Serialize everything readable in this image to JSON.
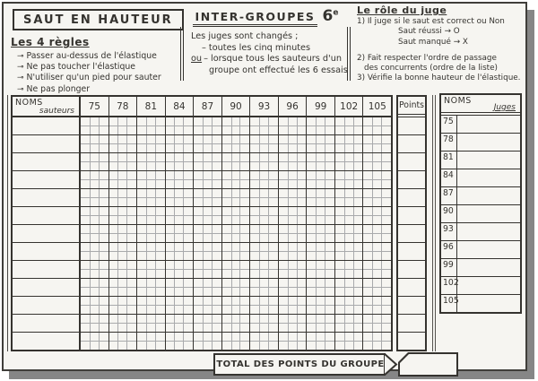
{
  "header": {
    "title": "SAUT EN HAUTEUR"
  },
  "rules_section": {
    "heading": "Les 4 règles",
    "bullet": "⊸",
    "items": [
      "Passer au-dessus de l'élastique",
      "Ne pas toucher l'élastique",
      "N'utiliser qu'un pied pour sauter",
      "Ne pas plonger"
    ]
  },
  "groups_section": {
    "title": "INTER-GROUPES",
    "grade": "6",
    "grade_sup": "e",
    "intro": "Les juges sont changés ;",
    "option1": "– toutes les cinq minutes",
    "or_label": "ou",
    "option2a": "– lorsque tous les sauteurs d'un",
    "option2b": "groupe ont effectué les 6 essais"
  },
  "judge_section": {
    "heading": "Le rôle du juge",
    "item1": "1) Il juge si le saut est correct ou Non",
    "success": "Saut réussi → O",
    "fail": "Saut manqué → X",
    "item2a": "2) Fait respecter l'ordre de passage",
    "item2b": "des concurrents (ordre de la liste)",
    "item3": "3) Vérifie la bonne hauteur de l'élastique."
  },
  "jumpers_table": {
    "corner_top": "NOMS",
    "corner_bottom": "sauteurs",
    "heights": [
      "75",
      "78",
      "81",
      "84",
      "87",
      "90",
      "93",
      "96",
      "99",
      "102",
      "105"
    ],
    "rows": 13,
    "attempts_per_height": 6
  },
  "points_table": {
    "header": "Points",
    "rows": 13
  },
  "judges_table": {
    "corner_top": "NOMS",
    "corner_bottom": "Juges",
    "heights": [
      "75",
      "78",
      "81",
      "84",
      "87",
      "90",
      "93",
      "96",
      "99",
      "102",
      "105"
    ]
  },
  "footer": {
    "total_label": "TOTAL DES POINTS DU GROUPE"
  },
  "colors": {
    "ink": "#35332f",
    "grid_light": "#a9aaac",
    "paper": "#f6f5f1",
    "shadow": "#868686"
  }
}
